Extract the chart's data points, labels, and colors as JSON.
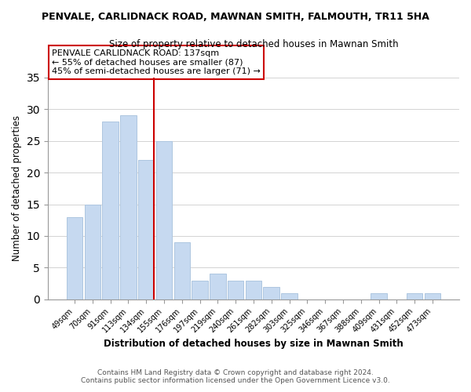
{
  "title": "PENVALE, CARLIDNACK ROAD, MAWNAN SMITH, FALMOUTH, TR11 5HA",
  "subtitle": "Size of property relative to detached houses in Mawnan Smith",
  "xlabel": "Distribution of detached houses by size in Mawnan Smith",
  "ylabel": "Number of detached properties",
  "footer_line1": "Contains HM Land Registry data © Crown copyright and database right 2024.",
  "footer_line2": "Contains public sector information licensed under the Open Government Licence v3.0.",
  "bar_labels": [
    "49sqm",
    "70sqm",
    "91sqm",
    "113sqm",
    "134sqm",
    "155sqm",
    "176sqm",
    "197sqm",
    "219sqm",
    "240sqm",
    "261sqm",
    "282sqm",
    "303sqm",
    "325sqm",
    "346sqm",
    "367sqm",
    "388sqm",
    "409sqm",
    "431sqm",
    "452sqm",
    "473sqm"
  ],
  "bar_values": [
    13,
    15,
    28,
    29,
    22,
    25,
    9,
    3,
    4,
    3,
    3,
    2,
    1,
    0,
    0,
    0,
    0,
    1,
    0,
    1,
    1
  ],
  "bar_color": "#c6d9f0",
  "bar_edge_color": "#aec6e0",
  "vline_x_index": 4,
  "vline_color": "#cc0000",
  "annotation_title": "PENVALE CARLIDNACK ROAD: 137sqm",
  "annotation_line1": "← 55% of detached houses are smaller (87)",
  "annotation_line2": "45% of semi-detached houses are larger (71) →",
  "annotation_box_color": "#ffffff",
  "annotation_box_edge": "#cc0000",
  "ylim": [
    0,
    35
  ],
  "yticks": [
    0,
    5,
    10,
    15,
    20,
    25,
    30,
    35
  ],
  "bg_color": "#ffffff"
}
